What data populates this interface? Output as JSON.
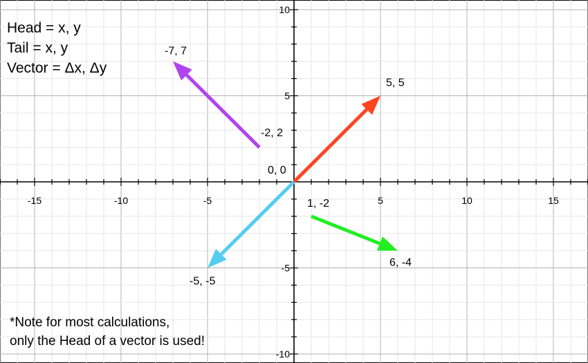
{
  "legend": {
    "line1": "Head = x, y",
    "line2": "Tail = x, y",
    "line3": "Vector = Δx, Δy"
  },
  "note": {
    "line1": "*Note for most calculations,",
    "line2": "only the Head of a vector is used!"
  },
  "axes": {
    "x_range": [
      -17,
      17
    ],
    "y_range": [
      -10.5,
      10.5
    ],
    "x_ticks": [
      -15,
      -10,
      -5,
      5,
      10,
      15
    ],
    "y_ticks": [
      -10,
      -5,
      5,
      10
    ],
    "grid": true
  },
  "vectors": [
    {
      "name": "red",
      "color": "#ff4422",
      "tail": [
        0,
        0
      ],
      "head": [
        5,
        5
      ],
      "head_label": "5, 5",
      "tail_label": "0, 0"
    },
    {
      "name": "purple",
      "color": "#b044ee",
      "tail": [
        -2,
        2
      ],
      "head": [
        -7,
        7
      ],
      "head_label": "-7, 7",
      "tail_label": "-2, 2"
    },
    {
      "name": "blue",
      "color": "#55ccf0",
      "tail": [
        0,
        0
      ],
      "head": [
        -5,
        -5
      ],
      "head_label": "-5, -5",
      "tail_label": ""
    },
    {
      "name": "green",
      "color": "#22ee22",
      "tail": [
        1,
        -2
      ],
      "head": [
        6,
        -4
      ],
      "head_label": "6, -4",
      "tail_label": "1, -2"
    }
  ]
}
